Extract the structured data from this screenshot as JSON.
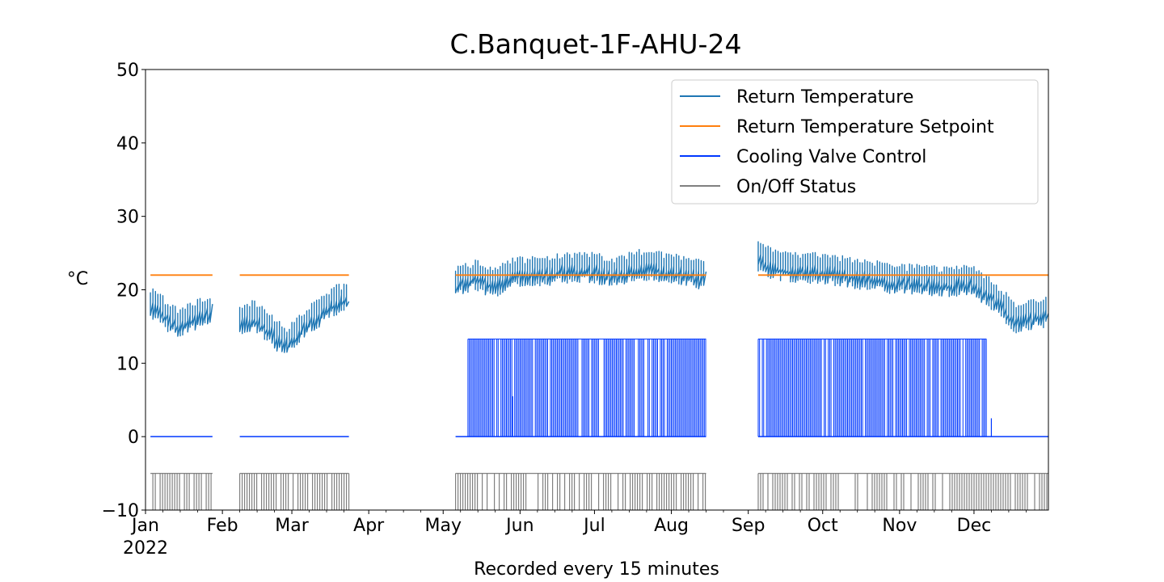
{
  "chart_data": {
    "type": "line",
    "title": "C.Banquet-1F-AHU-24",
    "xlabel": "Recorded every 15 minutes",
    "ylabel": "°C",
    "ylim": [
      -10,
      50
    ],
    "xlim": [
      "2022-01-01",
      "2022-12-31"
    ],
    "y_ticks": [
      -10,
      0,
      10,
      20,
      30,
      40,
      50
    ],
    "y_tick_labels": [
      "−10",
      "0",
      "10",
      "20",
      "30",
      "40",
      "50"
    ],
    "x_ticks": [
      {
        "date": "2022-01-01",
        "label": "Jan",
        "sublabel": "2022"
      },
      {
        "date": "2022-02-01",
        "label": "Feb"
      },
      {
        "date": "2022-03-01",
        "label": "Mar"
      },
      {
        "date": "2022-04-01",
        "label": "Apr"
      },
      {
        "date": "2022-05-01",
        "label": "May"
      },
      {
        "date": "2022-06-01",
        "label": "Jun"
      },
      {
        "date": "2022-07-01",
        "label": "Jul"
      },
      {
        "date": "2022-08-01",
        "label": "Aug"
      },
      {
        "date": "2022-09-01",
        "label": "Sep"
      },
      {
        "date": "2022-10-01",
        "label": "Oct"
      },
      {
        "date": "2022-11-01",
        "label": "Nov"
      },
      {
        "date": "2022-12-01",
        "label": "Dec"
      }
    ],
    "grid": false,
    "legend_position": "top-right",
    "data_periods": [
      {
        "start": "2022-01-03",
        "end": "2022-01-28"
      },
      {
        "start": "2022-02-08",
        "end": "2022-03-24"
      },
      {
        "start": "2022-05-06",
        "end": "2022-08-15"
      },
      {
        "start": "2022-09-05",
        "end": "2022-12-31"
      }
    ],
    "series": [
      {
        "name": "Return Temperature",
        "color": "#1f77b4",
        "points": [
          {
            "x": "2022-01-03",
            "y": 18.5
          },
          {
            "x": "2022-01-07",
            "y": 17.5
          },
          {
            "x": "2022-01-12",
            "y": 16.0
          },
          {
            "x": "2022-01-16",
            "y": 15.5
          },
          {
            "x": "2022-01-21",
            "y": 16.5
          },
          {
            "x": "2022-01-25",
            "y": 17.0
          },
          {
            "x": "2022-01-28",
            "y": 17.5
          },
          {
            "x": "2022-02-08",
            "y": 16.0
          },
          {
            "x": "2022-02-14",
            "y": 16.5
          },
          {
            "x": "2022-02-20",
            "y": 15.0
          },
          {
            "x": "2022-02-26",
            "y": 13.0
          },
          {
            "x": "2022-03-03",
            "y": 14.0
          },
          {
            "x": "2022-03-08",
            "y": 16.0
          },
          {
            "x": "2022-03-13",
            "y": 17.0
          },
          {
            "x": "2022-03-18",
            "y": 18.5
          },
          {
            "x": "2022-03-24",
            "y": 19.0
          },
          {
            "x": "2022-05-06",
            "y": 21.0
          },
          {
            "x": "2022-05-14",
            "y": 22.0
          },
          {
            "x": "2022-05-22",
            "y": 21.0
          },
          {
            "x": "2022-05-31",
            "y": 22.5
          },
          {
            "x": "2022-06-10",
            "y": 22.5
          },
          {
            "x": "2022-06-20",
            "y": 23.0
          },
          {
            "x": "2022-06-30",
            "y": 23.0
          },
          {
            "x": "2022-07-10",
            "y": 22.5
          },
          {
            "x": "2022-07-20",
            "y": 23.5
          },
          {
            "x": "2022-07-30",
            "y": 23.0
          },
          {
            "x": "2022-08-08",
            "y": 22.5
          },
          {
            "x": "2022-08-15",
            "y": 22.0
          },
          {
            "x": "2022-09-05",
            "y": 24.5
          },
          {
            "x": "2022-09-12",
            "y": 23.5
          },
          {
            "x": "2022-09-20",
            "y": 23.0
          },
          {
            "x": "2022-09-30",
            "y": 23.0
          },
          {
            "x": "2022-10-10",
            "y": 22.5
          },
          {
            "x": "2022-10-20",
            "y": 22.0
          },
          {
            "x": "2022-10-31",
            "y": 21.5
          },
          {
            "x": "2022-11-10",
            "y": 21.5
          },
          {
            "x": "2022-11-20",
            "y": 21.0
          },
          {
            "x": "2022-11-30",
            "y": 21.5
          },
          {
            "x": "2022-12-06",
            "y": 20.0
          },
          {
            "x": "2022-12-12",
            "y": 18.5
          },
          {
            "x": "2022-12-18",
            "y": 16.0
          },
          {
            "x": "2022-12-24",
            "y": 16.5
          },
          {
            "x": "2022-12-31",
            "y": 17.0
          }
        ],
        "peak_to_peak": 3.5
      },
      {
        "name": "Return Temperature Setpoint",
        "color": "#ff7f0e",
        "value": 22,
        "applies_to_periods": true
      },
      {
        "name": "Cooling Valve Control",
        "color": "#0038ff",
        "off_value": 0,
        "on_value": 13.3,
        "oscillating": [
          {
            "start": "2022-05-11",
            "end": "2022-08-15"
          },
          {
            "start": "2022-09-05",
            "end": "2022-12-06"
          }
        ],
        "occasional_values": [
          {
            "x": "2022-05-29",
            "y": 5.5
          },
          {
            "x": "2022-12-08",
            "y": 2.5
          }
        ]
      },
      {
        "name": "On/Off Status",
        "color": "#808080",
        "on_value": -5,
        "off_value": -10,
        "oscillating_in_periods": true
      }
    ]
  }
}
